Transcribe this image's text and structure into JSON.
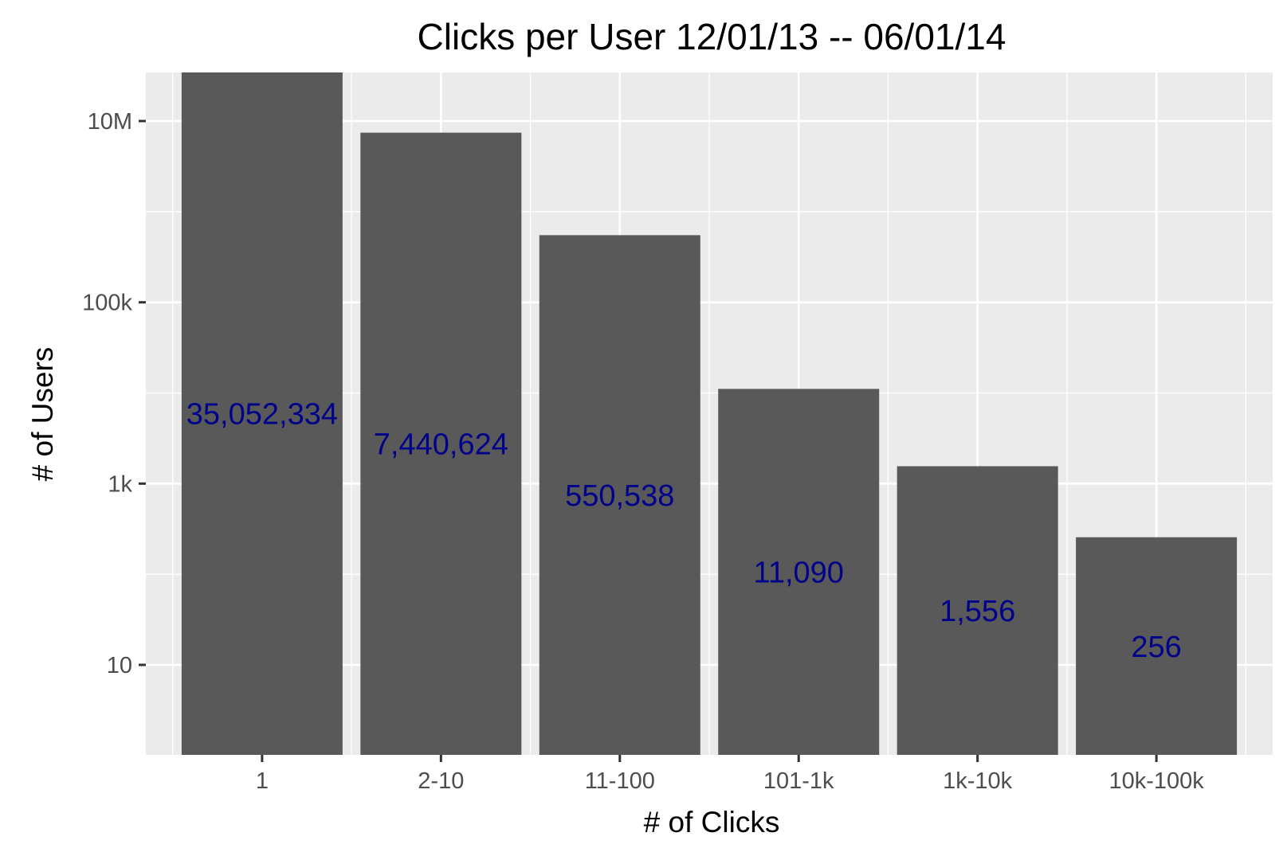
{
  "chart_data": {
    "type": "bar",
    "title": "Clicks per User 12/01/13 -- 06/01/14",
    "xlabel": "# of Clicks",
    "ylabel": "# of Users",
    "categories": [
      "1",
      "2-10",
      "11-100",
      "101-1k",
      "1k-10k",
      "10k-100k"
    ],
    "values": [
      35052334,
      7440624,
      550538,
      11090,
      1556,
      256
    ],
    "data_labels": [
      "35,052,334",
      "7,440,624",
      "550,538",
      "11,090",
      "1,556",
      "256"
    ],
    "y_scale": "log10",
    "y_ticks": [
      10,
      1000,
      100000,
      10000000
    ],
    "y_tick_labels": [
      "10",
      "1k",
      "100k",
      "10M"
    ],
    "ylim": [
      1,
      35052334
    ],
    "grid": true,
    "legend": "none",
    "colors": {
      "panel_background": "#ebebeb",
      "grid_major": "#ffffff",
      "bar_fill": "#595959",
      "data_label": "#00008b",
      "tick_mark": "#333333"
    }
  }
}
